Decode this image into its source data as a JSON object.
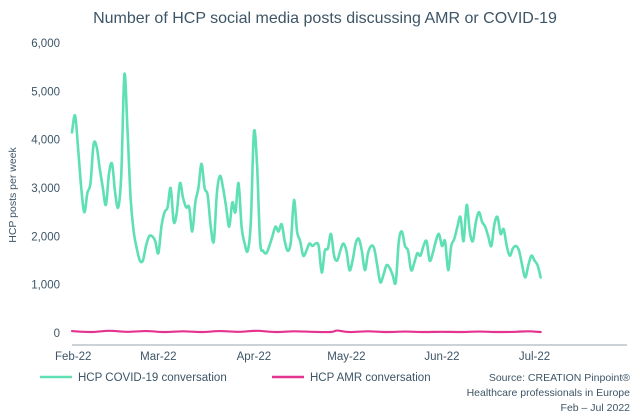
{
  "chart_data": {
    "type": "line",
    "title": "Number of HCP social media posts discussing AMR or COVID-19",
    "xlabel": "",
    "ylabel": "HCP posts per week",
    "ylim": [
      0,
      6000
    ],
    "y_ticks": [
      "0",
      "1,000",
      "2,000",
      "3,000",
      "4,000",
      "5,000",
      "6,000"
    ],
    "y_tick_values": [
      0,
      1000,
      2000,
      3000,
      4000,
      5000,
      6000
    ],
    "x_ticks": [
      "Feb-22",
      "Mar-22",
      "Apr-22",
      "May-22",
      "Jun-22",
      "Jul-22"
    ],
    "x_tick_days": [
      0,
      28,
      59,
      89,
      120,
      150
    ],
    "x_range_days": [
      0,
      180
    ],
    "grid": false,
    "legend_position": "bottom-left",
    "series": [
      {
        "name": "HCP COVID-19 conversation",
        "color": "#5ee0b4",
        "points": [
          [
            0,
            4150
          ],
          [
            1,
            4500
          ],
          [
            2,
            3800
          ],
          [
            3,
            3000
          ],
          [
            4,
            2500
          ],
          [
            5,
            2900
          ],
          [
            6,
            3100
          ],
          [
            7,
            3900
          ],
          [
            8,
            3850
          ],
          [
            9,
            3400
          ],
          [
            10,
            3000
          ],
          [
            11,
            2650
          ],
          [
            12,
            3300
          ],
          [
            13,
            3500
          ],
          [
            14,
            2900
          ],
          [
            15,
            2600
          ],
          [
            16,
            3300
          ],
          [
            17,
            5350
          ],
          [
            18,
            4200
          ],
          [
            19,
            2800
          ],
          [
            20,
            2100
          ],
          [
            21,
            1750
          ],
          [
            22,
            1500
          ],
          [
            23,
            1500
          ],
          [
            24,
            1800
          ],
          [
            25,
            2000
          ],
          [
            26,
            2000
          ],
          [
            27,
            1900
          ],
          [
            28,
            1650
          ],
          [
            29,
            2200
          ],
          [
            30,
            2500
          ],
          [
            31,
            2600
          ],
          [
            32,
            3000
          ],
          [
            33,
            2300
          ],
          [
            34,
            2500
          ],
          [
            35,
            3100
          ],
          [
            36,
            2800
          ],
          [
            37,
            2600
          ],
          [
            38,
            2600
          ],
          [
            39,
            2100
          ],
          [
            40,
            2700
          ],
          [
            41,
            3000
          ],
          [
            42,
            3500
          ],
          [
            43,
            3000
          ],
          [
            44,
            2850
          ],
          [
            45,
            2200
          ],
          [
            46,
            1900
          ],
          [
            47,
            2900
          ],
          [
            48,
            3250
          ],
          [
            49,
            3000
          ],
          [
            50,
            2600
          ],
          [
            51,
            2200
          ],
          [
            52,
            2700
          ],
          [
            53,
            2500
          ],
          [
            54,
            3100
          ],
          [
            55,
            2200
          ],
          [
            56,
            1850
          ],
          [
            57,
            1700
          ],
          [
            58,
            2300
          ],
          [
            59,
            4150
          ],
          [
            60,
            3500
          ],
          [
            61,
            1900
          ],
          [
            62,
            1700
          ],
          [
            63,
            1650
          ],
          [
            64,
            1800
          ],
          [
            65,
            2000
          ],
          [
            66,
            2200
          ],
          [
            67,
            2100
          ],
          [
            68,
            2250
          ],
          [
            69,
            1900
          ],
          [
            70,
            1700
          ],
          [
            71,
            1900
          ],
          [
            72,
            2750
          ],
          [
            73,
            2100
          ],
          [
            74,
            1900
          ],
          [
            75,
            1600
          ],
          [
            76,
            1700
          ],
          [
            77,
            1850
          ],
          [
            78,
            1800
          ],
          [
            79,
            1850
          ],
          [
            80,
            1800
          ],
          [
            81,
            1250
          ],
          [
            82,
            1700
          ],
          [
            83,
            1750
          ],
          [
            84,
            2050
          ],
          [
            85,
            1600
          ],
          [
            86,
            1500
          ],
          [
            87,
            1700
          ],
          [
            88,
            1850
          ],
          [
            89,
            1700
          ],
          [
            90,
            1300
          ],
          [
            91,
            1500
          ],
          [
            92,
            1850
          ],
          [
            93,
            1950
          ],
          [
            94,
            1700
          ],
          [
            95,
            1300
          ],
          [
            96,
            1650
          ],
          [
            97,
            1800
          ],
          [
            98,
            1750
          ],
          [
            99,
            1400
          ],
          [
            100,
            1050
          ],
          [
            101,
            1200
          ],
          [
            102,
            1400
          ],
          [
            103,
            1350
          ],
          [
            104,
            1200
          ],
          [
            105,
            1050
          ],
          [
            106,
            1900
          ],
          [
            107,
            2100
          ],
          [
            108,
            1800
          ],
          [
            109,
            1700
          ],
          [
            110,
            1300
          ],
          [
            111,
            1450
          ],
          [
            112,
            1650
          ],
          [
            113,
            1600
          ],
          [
            114,
            1800
          ],
          [
            115,
            1900
          ],
          [
            116,
            1500
          ],
          [
            117,
            1650
          ],
          [
            118,
            1900
          ],
          [
            119,
            2050
          ],
          [
            120,
            1800
          ],
          [
            121,
            1900
          ],
          [
            122,
            1300
          ],
          [
            123,
            1800
          ],
          [
            124,
            1950
          ],
          [
            125,
            2200
          ],
          [
            126,
            2400
          ],
          [
            127,
            1900
          ],
          [
            128,
            2650
          ],
          [
            129,
            2100
          ],
          [
            130,
            1900
          ],
          [
            131,
            2300
          ],
          [
            132,
            2500
          ],
          [
            133,
            2300
          ],
          [
            134,
            2200
          ],
          [
            135,
            2000
          ],
          [
            136,
            1800
          ],
          [
            137,
            2250
          ],
          [
            138,
            2400
          ],
          [
            139,
            2050
          ],
          [
            140,
            2150
          ],
          [
            141,
            1800
          ],
          [
            142,
            1600
          ],
          [
            143,
            1750
          ],
          [
            144,
            1800
          ],
          [
            145,
            1700
          ],
          [
            146,
            1400
          ],
          [
            147,
            1150
          ],
          [
            148,
            1400
          ],
          [
            149,
            1600
          ],
          [
            150,
            1500
          ],
          [
            151,
            1400
          ],
          [
            152,
            1150
          ]
        ]
      },
      {
        "name": "HCP AMR conversation",
        "color": "#e4348f",
        "points": [
          [
            0,
            40
          ],
          [
            6,
            20
          ],
          [
            12,
            45
          ],
          [
            18,
            25
          ],
          [
            24,
            40
          ],
          [
            30,
            20
          ],
          [
            36,
            35
          ],
          [
            42,
            20
          ],
          [
            48,
            40
          ],
          [
            54,
            25
          ],
          [
            60,
            45
          ],
          [
            66,
            20
          ],
          [
            72,
            35
          ],
          [
            78,
            25
          ],
          [
            84,
            20
          ],
          [
            86,
            50
          ],
          [
            90,
            20
          ],
          [
            96,
            35
          ],
          [
            102,
            20
          ],
          [
            108,
            30
          ],
          [
            114,
            20
          ],
          [
            120,
            25
          ],
          [
            126,
            20
          ],
          [
            132,
            30
          ],
          [
            138,
            20
          ],
          [
            144,
            25
          ],
          [
            148,
            35
          ],
          [
            152,
            20
          ]
        ]
      }
    ]
  },
  "source": {
    "line1": "Source: CREATION Pinpoint®",
    "line2": "Healthcare professionals in Europe",
    "line3": "Feb – Jul 2022"
  }
}
